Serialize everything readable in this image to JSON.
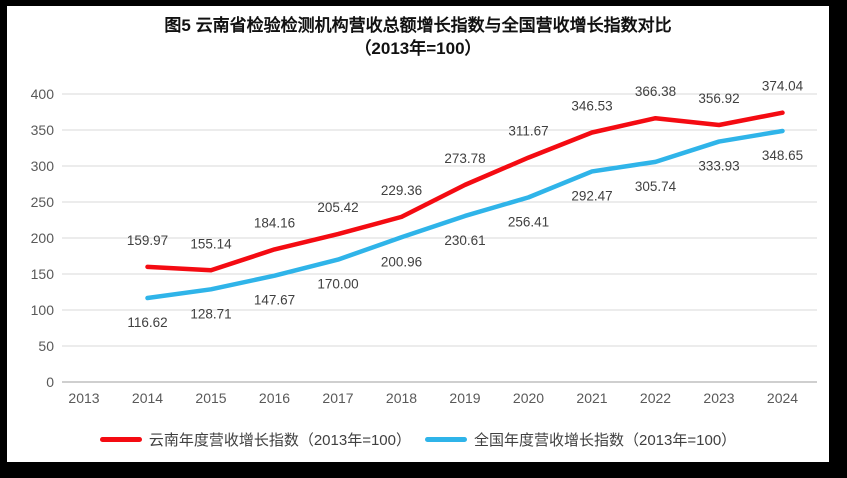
{
  "title": {
    "line1": "图5  云南省检验检测机构营收总额增长指数与全国营收增长指数对比",
    "line2": "（2013年=100）"
  },
  "chart_data": {
    "type": "line",
    "x": [
      2013,
      2014,
      2015,
      2016,
      2017,
      2018,
      2019,
      2020,
      2021,
      2022,
      2023,
      2024
    ],
    "series": [
      {
        "name": "云南年度营收增长指数（2013年=100）",
        "color": "#f40b12",
        "values": [
          null,
          159.97,
          155.14,
          184.16,
          205.42,
          229.36,
          273.78,
          311.67,
          346.53,
          366.38,
          356.92,
          374.04
        ],
        "point_labels": [
          "",
          "159.97",
          "155.14",
          "184.16",
          "205.42",
          "229.36",
          "273.78",
          "311.67",
          "346.53",
          "366.38",
          "356.92",
          "374.04"
        ],
        "label_position": "above"
      },
      {
        "name": "全国年度营收增长指数（2013年=100）",
        "color": "#2fb4e9",
        "values": [
          null,
          116.62,
          128.71,
          147.67,
          170.0,
          200.96,
          230.61,
          256.41,
          292.47,
          305.74,
          333.93,
          348.65
        ],
        "point_labels": [
          "",
          "116.62",
          "128.71",
          "147.67",
          "170.00",
          "200.96",
          "230.61",
          "256.41",
          "292.47",
          "305.74",
          "333.93",
          "348.65"
        ],
        "label_position": "below"
      }
    ],
    "ylim": [
      0,
      400
    ],
    "ytick_step": 50,
    "yticks": [
      "0",
      "50",
      "100",
      "150",
      "200",
      "250",
      "300",
      "350",
      "400"
    ],
    "grid": true,
    "legend_position": "bottom",
    "colors": {
      "gridline": "#d9d9d9",
      "zero_line": "#bfbfbf",
      "tick_label": "#595959",
      "point_label": "#404040",
      "title": "#111111",
      "background": "#ffffff",
      "frame": "#000000"
    }
  }
}
